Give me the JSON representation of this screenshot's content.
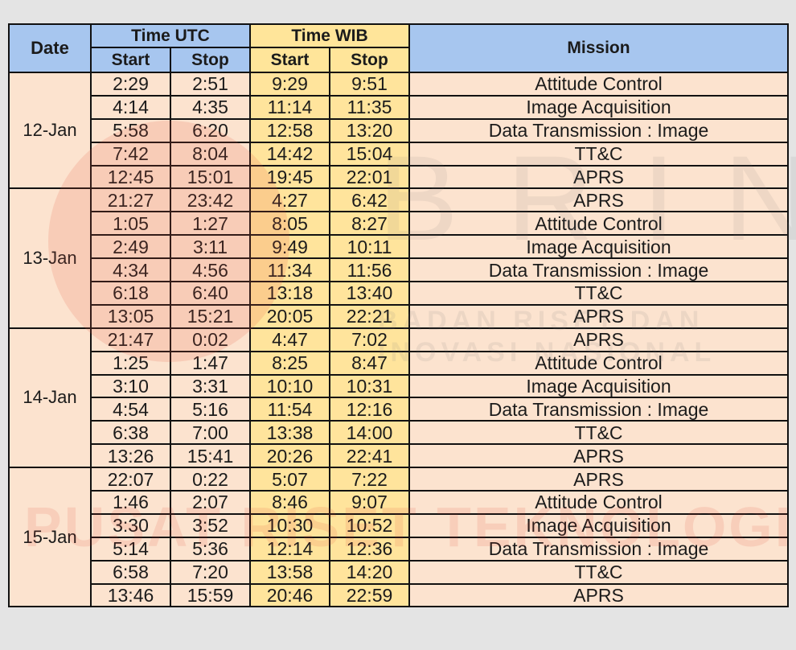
{
  "header": {
    "date": "Date",
    "time_utc": "Time UTC",
    "time_wib": "Time WIB",
    "mission": "Mission",
    "start": "Start",
    "stop": "Stop"
  },
  "watermark": {
    "logo": "BRIN",
    "subtitle": "BADAN RISET DAN INOVASI NASIONAL",
    "bottom": "PUSAT RISET TEKNOLOGI SATELIT"
  },
  "groups": [
    {
      "date": "12-Jan",
      "rows": [
        {
          "utc_start": "2:29",
          "utc_stop": "2:51",
          "wib_start": "9:29",
          "wib_stop": "9:51",
          "mission": "Attitude Control"
        },
        {
          "utc_start": "4:14",
          "utc_stop": "4:35",
          "wib_start": "11:14",
          "wib_stop": "11:35",
          "mission": "Image Acquisition"
        },
        {
          "utc_start": "5:58",
          "utc_stop": "6:20",
          "wib_start": "12:58",
          "wib_stop": "13:20",
          "mission": "Data Transmission : Image"
        },
        {
          "utc_start": "7:42",
          "utc_stop": "8:04",
          "wib_start": "14:42",
          "wib_stop": "15:04",
          "mission": "TT&C"
        },
        {
          "utc_start": "12:45",
          "utc_stop": "15:01",
          "wib_start": "19:45",
          "wib_stop": "22:01",
          "mission": "APRS"
        }
      ]
    },
    {
      "date": "13-Jan",
      "rows": [
        {
          "utc_start": "21:27",
          "utc_stop": "23:42",
          "wib_start": "4:27",
          "wib_stop": "6:42",
          "mission": "APRS"
        },
        {
          "utc_start": "1:05",
          "utc_stop": "1:27",
          "wib_start": "8:05",
          "wib_stop": "8:27",
          "mission": "Attitude Control"
        },
        {
          "utc_start": "2:49",
          "utc_stop": "3:11",
          "wib_start": "9:49",
          "wib_stop": "10:11",
          "mission": "Image Acquisition"
        },
        {
          "utc_start": "4:34",
          "utc_stop": "4:56",
          "wib_start": "11:34",
          "wib_stop": "11:56",
          "mission": "Data Transmission : Image"
        },
        {
          "utc_start": "6:18",
          "utc_stop": "6:40",
          "wib_start": "13:18",
          "wib_stop": "13:40",
          "mission": "TT&C"
        },
        {
          "utc_start": "13:05",
          "utc_stop": "15:21",
          "wib_start": "20:05",
          "wib_stop": "22:21",
          "mission": "APRS"
        }
      ]
    },
    {
      "date": "14-Jan",
      "rows": [
        {
          "utc_start": "21:47",
          "utc_stop": "0:02",
          "wib_start": "4:47",
          "wib_stop": "7:02",
          "mission": "APRS"
        },
        {
          "utc_start": "1:25",
          "utc_stop": "1:47",
          "wib_start": "8:25",
          "wib_stop": "8:47",
          "mission": "Attitude Control"
        },
        {
          "utc_start": "3:10",
          "utc_stop": "3:31",
          "wib_start": "10:10",
          "wib_stop": "10:31",
          "mission": "Image Acquisition"
        },
        {
          "utc_start": "4:54",
          "utc_stop": "5:16",
          "wib_start": "11:54",
          "wib_stop": "12:16",
          "mission": "Data Transmission : Image"
        },
        {
          "utc_start": "6:38",
          "utc_stop": "7:00",
          "wib_start": "13:38",
          "wib_stop": "14:00",
          "mission": "TT&C"
        },
        {
          "utc_start": "13:26",
          "utc_stop": "15:41",
          "wib_start": "20:26",
          "wib_stop": "22:41",
          "mission": "APRS"
        }
      ]
    },
    {
      "date": "15-Jan",
      "rows": [
        {
          "utc_start": "22:07",
          "utc_stop": "0:22",
          "wib_start": "5:07",
          "wib_stop": "7:22",
          "mission": "APRS"
        },
        {
          "utc_start": "1:46",
          "utc_stop": "2:07",
          "wib_start": "8:46",
          "wib_stop": "9:07",
          "mission": "Attitude Control"
        },
        {
          "utc_start": "3:30",
          "utc_stop": "3:52",
          "wib_start": "10:30",
          "wib_stop": "10:52",
          "mission": "Image Acquisition"
        },
        {
          "utc_start": "5:14",
          "utc_stop": "5:36",
          "wib_start": "12:14",
          "wib_stop": "12:36",
          "mission": "Data Transmission : Image"
        },
        {
          "utc_start": "6:58",
          "utc_stop": "7:20",
          "wib_start": "13:58",
          "wib_stop": "14:20",
          "mission": "TT&C"
        },
        {
          "utc_start": "13:46",
          "utc_stop": "15:59",
          "wib_start": "20:46",
          "wib_stop": "22:59",
          "mission": "APRS"
        }
      ]
    }
  ]
}
